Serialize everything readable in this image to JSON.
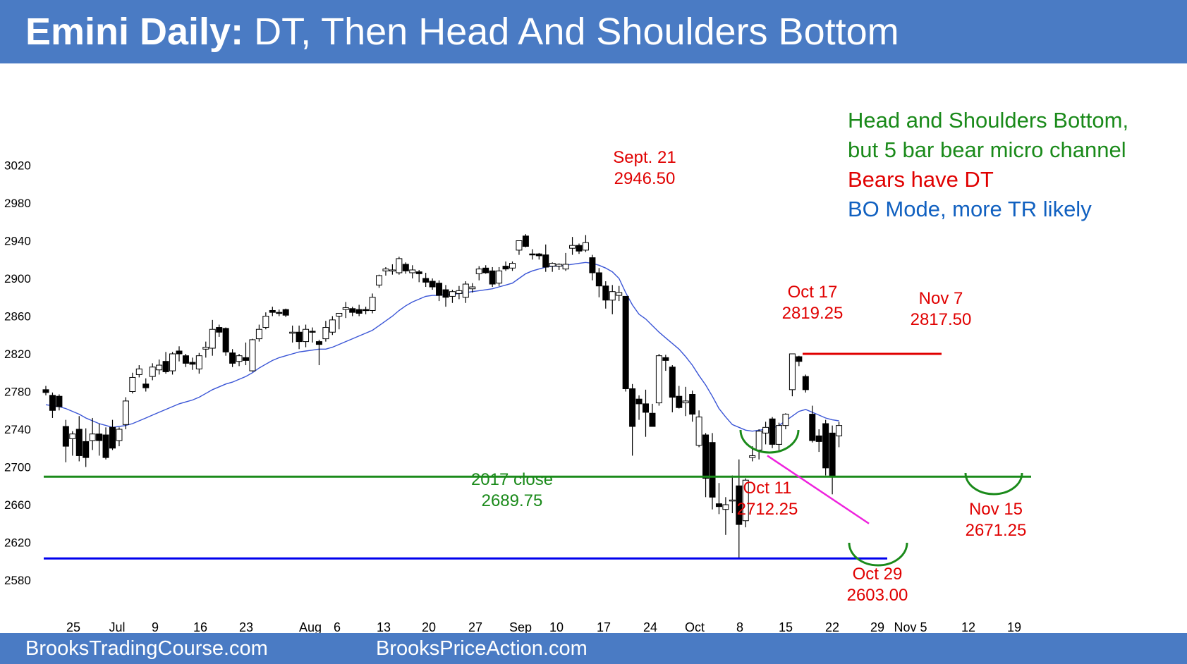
{
  "header": {
    "title_bold": "Emini Daily:",
    "title_rest": " DT, Then Head And Shoulders Bottom"
  },
  "footer": {
    "left": "BrooksTradingCourse.com",
    "right": "BrooksPriceAction.com"
  },
  "colors": {
    "banner": "#4a7bc4",
    "ema": "#3a55d6",
    "green": "#1a8a1a",
    "red": "#e00000",
    "blue": "#1060c0",
    "magenta": "#ee22dd",
    "support_blue": "#0000ee"
  },
  "chart_data": {
    "type": "candlestick",
    "ylim": [
      2560,
      3040
    ],
    "y_ticks": [
      2580,
      2620,
      2660,
      2700,
      2740,
      2780,
      2820,
      2860,
      2900,
      2940,
      2980,
      3020
    ],
    "x_ticks": [
      "25",
      "Jul",
      "9",
      "16",
      "23",
      "Aug",
      "6",
      "13",
      "20",
      "27",
      "Sep",
      "10",
      "17",
      "24",
      "Oct",
      "8",
      "15",
      "22",
      "29",
      "Nov 5",
      "12",
      "19"
    ],
    "candles": [
      {
        "o": 2782,
        "h": 2786,
        "l": 2776,
        "c": 2779
      },
      {
        "o": 2776,
        "h": 2779,
        "l": 2752,
        "c": 2760
      },
      {
        "o": 2775,
        "h": 2777,
        "l": 2760,
        "c": 2764
      },
      {
        "o": 2743,
        "h": 2750,
        "l": 2705,
        "c": 2722
      },
      {
        "o": 2730,
        "h": 2738,
        "l": 2712,
        "c": 2735
      },
      {
        "o": 2740,
        "h": 2754,
        "l": 2706,
        "c": 2712
      },
      {
        "o": 2727,
        "h": 2741,
        "l": 2700,
        "c": 2710
      },
      {
        "o": 2728,
        "h": 2752,
        "l": 2718,
        "c": 2735
      },
      {
        "o": 2735,
        "h": 2746,
        "l": 2712,
        "c": 2728
      },
      {
        "o": 2734,
        "h": 2742,
        "l": 2708,
        "c": 2710
      },
      {
        "o": 2742,
        "h": 2750,
        "l": 2718,
        "c": 2720
      },
      {
        "o": 2728,
        "h": 2742,
        "l": 2722,
        "c": 2740
      },
      {
        "o": 2745,
        "h": 2774,
        "l": 2740,
        "c": 2770
      },
      {
        "o": 2780,
        "h": 2800,
        "l": 2778,
        "c": 2795
      },
      {
        "o": 2798,
        "h": 2808,
        "l": 2795,
        "c": 2804
      },
      {
        "o": 2788,
        "h": 2794,
        "l": 2780,
        "c": 2784
      },
      {
        "o": 2796,
        "h": 2810,
        "l": 2792,
        "c": 2806
      },
      {
        "o": 2803,
        "h": 2814,
        "l": 2798,
        "c": 2808
      },
      {
        "o": 2812,
        "h": 2822,
        "l": 2799,
        "c": 2801
      },
      {
        "o": 2802,
        "h": 2822,
        "l": 2798,
        "c": 2820
      },
      {
        "o": 2823,
        "h": 2828,
        "l": 2812,
        "c": 2820
      },
      {
        "o": 2818,
        "h": 2820,
        "l": 2806,
        "c": 2810
      },
      {
        "o": 2811,
        "h": 2816,
        "l": 2803,
        "c": 2809
      },
      {
        "o": 2804,
        "h": 2821,
        "l": 2799,
        "c": 2818
      },
      {
        "o": 2825,
        "h": 2833,
        "l": 2816,
        "c": 2827
      },
      {
        "o": 2826,
        "h": 2856,
        "l": 2818,
        "c": 2846
      },
      {
        "o": 2848,
        "h": 2851,
        "l": 2838,
        "c": 2843
      },
      {
        "o": 2847,
        "h": 2848,
        "l": 2818,
        "c": 2822
      },
      {
        "o": 2821,
        "h": 2825,
        "l": 2806,
        "c": 2810
      },
      {
        "o": 2812,
        "h": 2820,
        "l": 2807,
        "c": 2818
      },
      {
        "o": 2816,
        "h": 2832,
        "l": 2808,
        "c": 2813
      },
      {
        "o": 2802,
        "h": 2836,
        "l": 2801,
        "c": 2835
      },
      {
        "o": 2836,
        "h": 2851,
        "l": 2833,
        "c": 2846
      },
      {
        "o": 2848,
        "h": 2864,
        "l": 2846,
        "c": 2860
      },
      {
        "o": 2866,
        "h": 2870,
        "l": 2860,
        "c": 2864
      },
      {
        "o": 2864,
        "h": 2867,
        "l": 2860,
        "c": 2863
      },
      {
        "o": 2867,
        "h": 2868,
        "l": 2859,
        "c": 2861
      },
      {
        "o": 2842,
        "h": 2850,
        "l": 2832,
        "c": 2843
      },
      {
        "o": 2843,
        "h": 2850,
        "l": 2825,
        "c": 2833
      },
      {
        "o": 2833,
        "h": 2851,
        "l": 2827,
        "c": 2846
      },
      {
        "o": 2844,
        "h": 2848,
        "l": 2832,
        "c": 2843
      },
      {
        "o": 2833,
        "h": 2835,
        "l": 2808,
        "c": 2830
      },
      {
        "o": 2836,
        "h": 2855,
        "l": 2833,
        "c": 2848
      },
      {
        "o": 2843,
        "h": 2860,
        "l": 2840,
        "c": 2856
      },
      {
        "o": 2860,
        "h": 2863,
        "l": 2846,
        "c": 2863
      },
      {
        "o": 2867,
        "h": 2875,
        "l": 2858,
        "c": 2869
      },
      {
        "o": 2868,
        "h": 2870,
        "l": 2860,
        "c": 2864
      },
      {
        "o": 2867,
        "h": 2872,
        "l": 2860,
        "c": 2863
      },
      {
        "o": 2867,
        "h": 2870,
        "l": 2862,
        "c": 2866
      },
      {
        "o": 2866,
        "h": 2884,
        "l": 2863,
        "c": 2880
      },
      {
        "o": 2893,
        "h": 2904,
        "l": 2890,
        "c": 2903
      },
      {
        "o": 2908,
        "h": 2912,
        "l": 2903,
        "c": 2910
      },
      {
        "o": 2908,
        "h": 2915,
        "l": 2904,
        "c": 2909
      },
      {
        "o": 2906,
        "h": 2923,
        "l": 2904,
        "c": 2921
      },
      {
        "o": 2915,
        "h": 2917,
        "l": 2905,
        "c": 2908
      },
      {
        "o": 2906,
        "h": 2914,
        "l": 2900,
        "c": 2909
      },
      {
        "o": 2907,
        "h": 2909,
        "l": 2896,
        "c": 2905
      },
      {
        "o": 2900,
        "h": 2906,
        "l": 2891,
        "c": 2896
      },
      {
        "o": 2897,
        "h": 2900,
        "l": 2888,
        "c": 2891
      },
      {
        "o": 2895,
        "h": 2898,
        "l": 2876,
        "c": 2882
      },
      {
        "o": 2888,
        "h": 2893,
        "l": 2870,
        "c": 2880
      },
      {
        "o": 2881,
        "h": 2888,
        "l": 2874,
        "c": 2886
      },
      {
        "o": 2884,
        "h": 2892,
        "l": 2878,
        "c": 2887
      },
      {
        "o": 2880,
        "h": 2897,
        "l": 2874,
        "c": 2894
      },
      {
        "o": 2889,
        "h": 2895,
        "l": 2885,
        "c": 2891
      },
      {
        "o": 2905,
        "h": 2913,
        "l": 2898,
        "c": 2910
      },
      {
        "o": 2911,
        "h": 2914,
        "l": 2905,
        "c": 2906
      },
      {
        "o": 2908,
        "h": 2912,
        "l": 2891,
        "c": 2894
      },
      {
        "o": 2895,
        "h": 2912,
        "l": 2892,
        "c": 2908
      },
      {
        "o": 2913,
        "h": 2918,
        "l": 2908,
        "c": 2910
      },
      {
        "o": 2911,
        "h": 2918,
        "l": 2908,
        "c": 2916
      },
      {
        "o": 2930,
        "h": 2940,
        "l": 2925,
        "c": 2940
      },
      {
        "o": 2945,
        "h": 2947,
        "l": 2933,
        "c": 2934
      },
      {
        "o": 2926,
        "h": 2931,
        "l": 2920,
        "c": 2925
      },
      {
        "o": 2926,
        "h": 2927,
        "l": 2920,
        "c": 2924
      },
      {
        "o": 2925,
        "h": 2936,
        "l": 2907,
        "c": 2912
      },
      {
        "o": 2913,
        "h": 2917,
        "l": 2907,
        "c": 2916
      },
      {
        "o": 2913,
        "h": 2916,
        "l": 2909,
        "c": 2915
      },
      {
        "o": 2910,
        "h": 2927,
        "l": 2908,
        "c": 2915
      },
      {
        "o": 2932,
        "h": 2944,
        "l": 2925,
        "c": 2935
      },
      {
        "o": 2935,
        "h": 2937,
        "l": 2926,
        "c": 2929
      },
      {
        "o": 2930,
        "h": 2946,
        "l": 2928,
        "c": 2938
      },
      {
        "o": 2922,
        "h": 2925,
        "l": 2898,
        "c": 2906
      },
      {
        "o": 2906,
        "h": 2911,
        "l": 2880,
        "c": 2892
      },
      {
        "o": 2892,
        "h": 2897,
        "l": 2868,
        "c": 2877
      },
      {
        "o": 2877,
        "h": 2893,
        "l": 2862,
        "c": 2886
      },
      {
        "o": 2882,
        "h": 2892,
        "l": 2876,
        "c": 2885
      },
      {
        "o": 2881,
        "h": 2881,
        "l": 2780,
        "c": 2783
      },
      {
        "o": 2783,
        "h": 2788,
        "l": 2712,
        "c": 2743
      },
      {
        "o": 2772,
        "h": 2776,
        "l": 2750,
        "c": 2767
      },
      {
        "o": 2767,
        "h": 2782,
        "l": 2732,
        "c": 2758
      },
      {
        "o": 2757,
        "h": 2767,
        "l": 2743,
        "c": 2743
      },
      {
        "o": 2768,
        "h": 2820,
        "l": 2765,
        "c": 2818
      },
      {
        "o": 2816,
        "h": 2819,
        "l": 2802,
        "c": 2813
      },
      {
        "o": 2806,
        "h": 2808,
        "l": 2758,
        "c": 2774
      },
      {
        "o": 2775,
        "h": 2786,
        "l": 2762,
        "c": 2763
      },
      {
        "o": 2768,
        "h": 2785,
        "l": 2754,
        "c": 2770
      },
      {
        "o": 2777,
        "h": 2781,
        "l": 2748,
        "c": 2756
      },
      {
        "o": 2723,
        "h": 2760,
        "l": 2721,
        "c": 2753
      },
      {
        "o": 2734,
        "h": 2736,
        "l": 2668,
        "c": 2688
      },
      {
        "o": 2726,
        "h": 2736,
        "l": 2655,
        "c": 2668
      },
      {
        "o": 2661,
        "h": 2683,
        "l": 2650,
        "c": 2658
      },
      {
        "o": 2655,
        "h": 2668,
        "l": 2628,
        "c": 2660
      },
      {
        "o": 2664,
        "h": 2691,
        "l": 2651,
        "c": 2665
      },
      {
        "o": 2680,
        "h": 2708,
        "l": 2603,
        "c": 2639
      },
      {
        "o": 2643,
        "h": 2688,
        "l": 2636,
        "c": 2686
      },
      {
        "o": 2710,
        "h": 2722,
        "l": 2706,
        "c": 2712
      },
      {
        "o": 2718,
        "h": 2740,
        "l": 2708,
        "c": 2738
      },
      {
        "o": 2736,
        "h": 2748,
        "l": 2724,
        "c": 2742
      },
      {
        "o": 2751,
        "h": 2753,
        "l": 2720,
        "c": 2724
      },
      {
        "o": 2724,
        "h": 2747,
        "l": 2716,
        "c": 2744
      },
      {
        "o": 2744,
        "h": 2757,
        "l": 2740,
        "c": 2756
      },
      {
        "o": 2782,
        "h": 2820,
        "l": 2775,
        "c": 2820
      },
      {
        "o": 2817,
        "h": 2818,
        "l": 2807,
        "c": 2812
      },
      {
        "o": 2796,
        "h": 2798,
        "l": 2779,
        "c": 2782
      },
      {
        "o": 2756,
        "h": 2765,
        "l": 2726,
        "c": 2728
      },
      {
        "o": 2733,
        "h": 2740,
        "l": 2716,
        "c": 2727
      },
      {
        "o": 2746,
        "h": 2750,
        "l": 2691,
        "c": 2699
      },
      {
        "o": 2736,
        "h": 2744,
        "l": 2671,
        "c": 2691
      },
      {
        "o": 2733,
        "h": 2748,
        "l": 2721,
        "c": 2744
      }
    ],
    "ema": [
      2766,
      2765,
      2764,
      2762,
      2759,
      2756,
      2752,
      2749,
      2746,
      2744,
      2742,
      2743,
      2744,
      2746,
      2749,
      2752,
      2755,
      2758,
      2761,
      2764,
      2767,
      2769,
      2771,
      2774,
      2778,
      2782,
      2785,
      2788,
      2790,
      2793,
      2796,
      2800,
      2805,
      2809,
      2813,
      2816,
      2818,
      2820,
      2822,
      2823,
      2824,
      2825,
      2825,
      2827,
      2830,
      2833,
      2836,
      2839,
      2842,
      2845,
      2850,
      2855,
      2860,
      2866,
      2871,
      2875,
      2878,
      2881,
      2882,
      2882,
      2883,
      2883,
      2884,
      2885,
      2886,
      2887,
      2888,
      2889,
      2891,
      2893,
      2895,
      2900,
      2905,
      2908,
      2910,
      2912,
      2913,
      2913,
      2914,
      2915,
      2916,
      2917,
      2916,
      2914,
      2911,
      2907,
      2900,
      2885,
      2872,
      2862,
      2857,
      2850,
      2843,
      2837,
      2831,
      2825,
      2817,
      2808,
      2797,
      2787,
      2775,
      2762,
      2753,
      2745,
      2742,
      2739,
      2738,
      2739,
      2740,
      2741,
      2744,
      2749,
      2754,
      2759,
      2761,
      2758,
      2755,
      2752,
      2750,
      2749
    ],
    "lines": {
      "support_2017_close": {
        "value": 2689.75,
        "label_1": "2017 close",
        "label_2": "2689.75"
      },
      "support_low": {
        "value": 2603
      },
      "dt_line": {
        "value": 2820
      },
      "trendline": {
        "from": 2712,
        "to": 2640
      }
    },
    "annotations": [
      {
        "l1": "Sept. 21",
        "l2": "2946.50"
      },
      {
        "l1": "Oct 17",
        "l2": "2819.25"
      },
      {
        "l1": "Nov 7",
        "l2": "2817.50"
      },
      {
        "l1": "Oct 11",
        "l2": "2712.25"
      },
      {
        "l1": "Oct 29",
        "l2": "2603.00"
      },
      {
        "l1": "Nov 15",
        "l2": "2671.25"
      }
    ],
    "legend": [
      {
        "text": "Head and Shoulders Bottom,",
        "color": "green"
      },
      {
        "text": "but 5 bar bear micro channel",
        "color": "green"
      },
      {
        "text": "Bears have DT",
        "color": "red"
      },
      {
        "text": "BO Mode, more TR likely",
        "color": "blue"
      }
    ]
  }
}
